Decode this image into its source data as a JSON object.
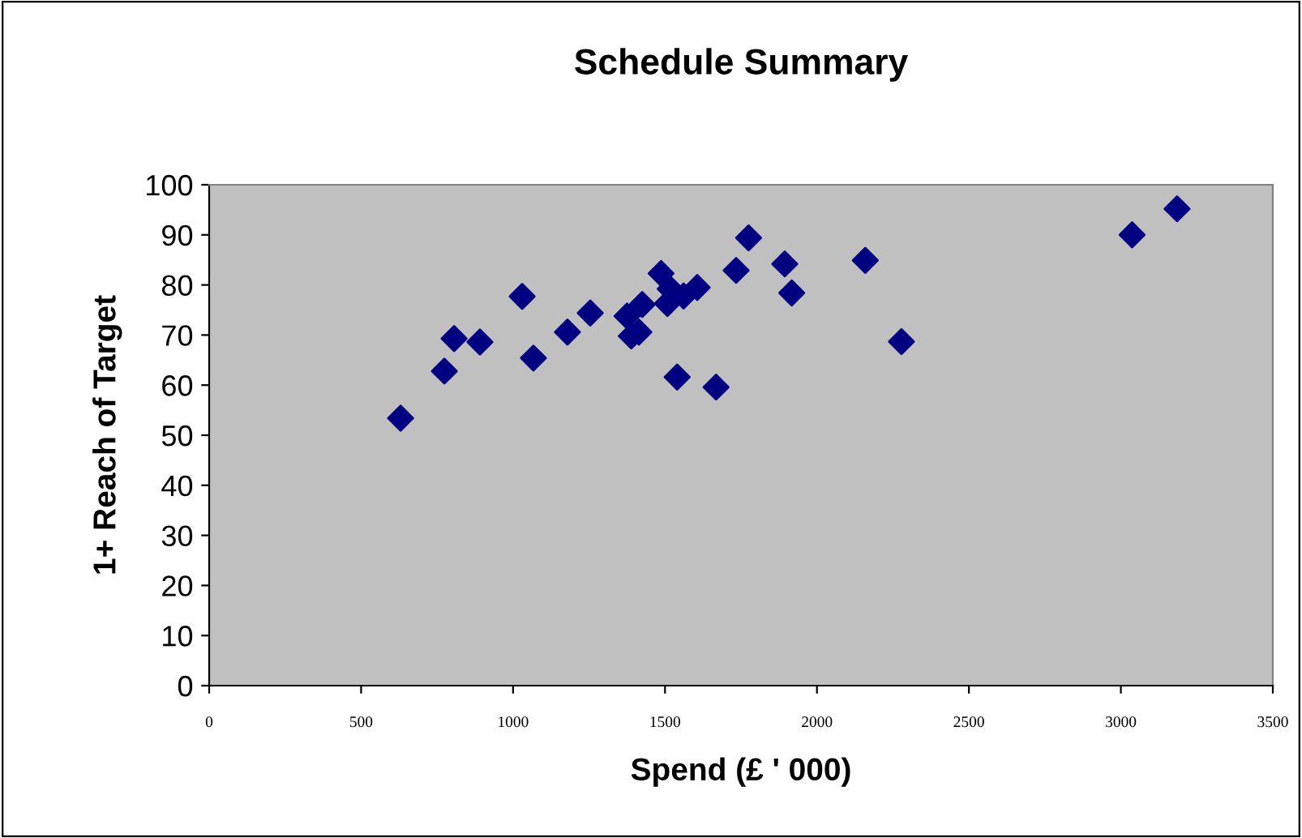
{
  "chart_data": {
    "type": "scatter",
    "title": "Schedule Summary",
    "xlabel": "Spend (£ ' 000)",
    "ylabel": "1+ Reach of Target",
    "x": [
      630,
      774,
      806,
      891,
      1030,
      1067,
      1179,
      1254,
      1375,
      1401,
      1425,
      1389,
      1414,
      1487,
      1517,
      1508,
      1561,
      1606,
      1540,
      1668,
      1734,
      1775,
      1894,
      1917,
      2159,
      2278,
      3037,
      3185
    ],
    "series": [
      {
        "color": "#000080",
        "values": [
          53.4,
          62.8,
          69.3,
          68.6,
          77.7,
          65.4,
          70.6,
          74.4,
          73.8,
          null,
          76.1,
          69.8,
          70.6,
          82.3,
          79.2,
          76.3,
          77.8,
          79.5,
          61.6,
          59.6,
          82.9,
          89.4,
          84.2,
          78.4,
          84.9,
          68.7,
          90.0,
          95.2
        ]
      }
    ],
    "marker": "diamond",
    "xlim": [
      0,
      3500
    ],
    "xticks": [
      0,
      500,
      1000,
      1500,
      2000,
      2500,
      3000,
      3500
    ],
    "ylim": [
      0,
      100
    ],
    "yticks": [
      0,
      10,
      20,
      30,
      40,
      50,
      60,
      70,
      80,
      90,
      100
    ],
    "grid": false,
    "legend": false
  }
}
